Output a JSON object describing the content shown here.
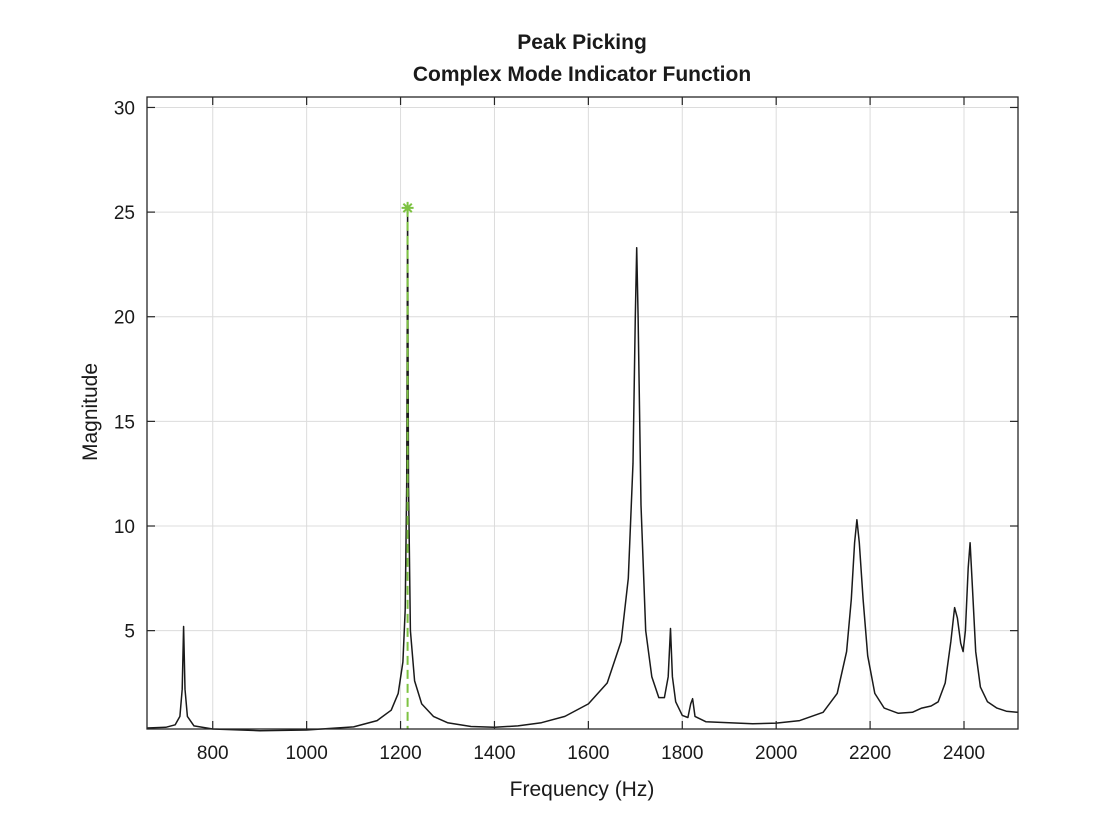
{
  "chart_data": {
    "type": "line",
    "title": "Peak Picking",
    "subtitle": "Complex Mode Indicator Function",
    "xlabel": "Frequency (Hz)",
    "ylabel": "Magnitude",
    "xlim": [
      660,
      2515
    ],
    "ylim": [
      0.3,
      30.5
    ],
    "xticks": [
      800,
      1000,
      1200,
      1400,
      1600,
      1800,
      2000,
      2200,
      2400
    ],
    "yticks": [
      5,
      10,
      15,
      20,
      25,
      30
    ],
    "grid": true,
    "colors": {
      "series": "#1a1a1a",
      "pick": "#7dc242",
      "axes": "#262626",
      "grid": "#dcdcdc"
    },
    "series": [
      {
        "values": [
          [
            660,
            0.35
          ],
          [
            700,
            0.38
          ],
          [
            720,
            0.5
          ],
          [
            730,
            0.9
          ],
          [
            735,
            2.2
          ],
          [
            738,
            5.2
          ],
          [
            741,
            2.2
          ],
          [
            746,
            0.9
          ],
          [
            760,
            0.45
          ],
          [
            800,
            0.3
          ],
          [
            900,
            0.22
          ],
          [
            1000,
            0.25
          ],
          [
            1100,
            0.4
          ],
          [
            1150,
            0.7
          ],
          [
            1180,
            1.2
          ],
          [
            1195,
            2.0
          ],
          [
            1205,
            3.5
          ],
          [
            1210,
            6.0
          ],
          [
            1213,
            12.0
          ],
          [
            1215,
            25.2
          ],
          [
            1217,
            12.0
          ],
          [
            1221,
            5.0
          ],
          [
            1230,
            2.6
          ],
          [
            1245,
            1.5
          ],
          [
            1270,
            0.9
          ],
          [
            1300,
            0.6
          ],
          [
            1350,
            0.42
          ],
          [
            1400,
            0.38
          ],
          [
            1450,
            0.45
          ],
          [
            1500,
            0.6
          ],
          [
            1550,
            0.9
          ],
          [
            1600,
            1.5
          ],
          [
            1640,
            2.5
          ],
          [
            1670,
            4.5
          ],
          [
            1685,
            7.5
          ],
          [
            1695,
            13.0
          ],
          [
            1700,
            20.0
          ],
          [
            1703,
            23.3
          ],
          [
            1706,
            20.0
          ],
          [
            1712,
            11.0
          ],
          [
            1722,
            5.0
          ],
          [
            1735,
            2.8
          ],
          [
            1750,
            1.8
          ],
          [
            1762,
            1.8
          ],
          [
            1770,
            2.8
          ],
          [
            1775,
            5.1
          ],
          [
            1779,
            2.8
          ],
          [
            1786,
            1.6
          ],
          [
            1800,
            0.95
          ],
          [
            1812,
            0.85
          ],
          [
            1818,
            1.5
          ],
          [
            1822,
            1.75
          ],
          [
            1827,
            0.9
          ],
          [
            1850,
            0.65
          ],
          [
            1900,
            0.6
          ],
          [
            1950,
            0.55
          ],
          [
            2000,
            0.58
          ],
          [
            2050,
            0.7
          ],
          [
            2100,
            1.1
          ],
          [
            2130,
            2.0
          ],
          [
            2150,
            4.0
          ],
          [
            2160,
            6.5
          ],
          [
            2167,
            9.2
          ],
          [
            2172,
            10.3
          ],
          [
            2177,
            9.2
          ],
          [
            2185,
            6.5
          ],
          [
            2195,
            3.8
          ],
          [
            2210,
            2.0
          ],
          [
            2230,
            1.3
          ],
          [
            2260,
            1.05
          ],
          [
            2290,
            1.1
          ],
          [
            2310,
            1.3
          ],
          [
            2330,
            1.4
          ],
          [
            2345,
            1.6
          ],
          [
            2360,
            2.5
          ],
          [
            2372,
            4.5
          ],
          [
            2380,
            6.1
          ],
          [
            2386,
            5.6
          ],
          [
            2393,
            4.4
          ],
          [
            2398,
            4.0
          ],
          [
            2403,
            5.0
          ],
          [
            2409,
            8.0
          ],
          [
            2413,
            9.2
          ],
          [
            2418,
            7.0
          ],
          [
            2425,
            4.0
          ],
          [
            2435,
            2.3
          ],
          [
            2450,
            1.6
          ],
          [
            2470,
            1.3
          ],
          [
            2490,
            1.15
          ],
          [
            2515,
            1.1
          ]
        ]
      }
    ],
    "pick": {
      "x": 1215,
      "y": 25.2
    }
  }
}
